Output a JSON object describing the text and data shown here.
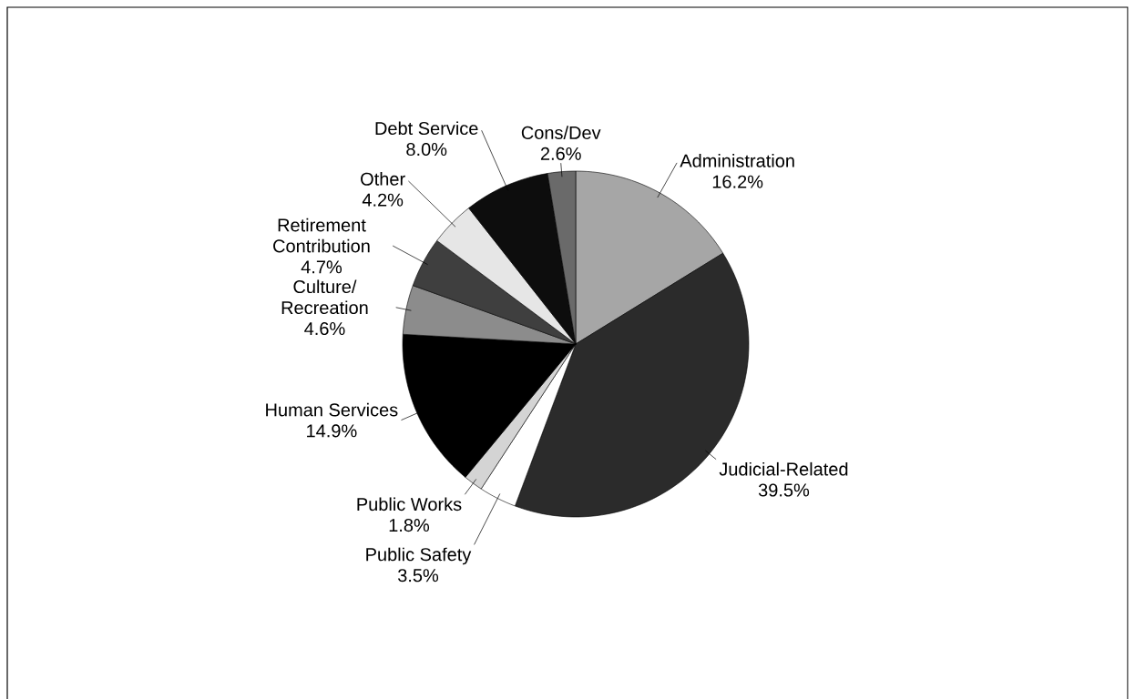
{
  "chart_data": {
    "type": "pie",
    "categories": [
      "Administration",
      "Judicial-Related",
      "Public Safety",
      "Public Works",
      "Human Services",
      "Culture/ Recreation",
      "Retirement Contribution",
      "Other",
      "Debt Service",
      "Cons/Dev"
    ],
    "values": [
      16.2,
      39.5,
      3.5,
      1.8,
      14.9,
      4.6,
      4.7,
      4.2,
      8.0,
      2.6
    ],
    "value_labels": [
      "16.2%",
      "39.5%",
      "3.5%",
      "1.8%",
      "14.9%",
      "4.6%",
      "4.7%",
      "4.2%",
      "8.0%",
      "2.6%"
    ],
    "colors": [
      "#a6a6a6",
      "#2b2b2b",
      "#ffffff",
      "#d4d4d4",
      "#000000",
      "#8c8c8c",
      "#3f3f3f",
      "#e6e6e6",
      "#0d0d0d",
      "#6a6a6a"
    ]
  }
}
